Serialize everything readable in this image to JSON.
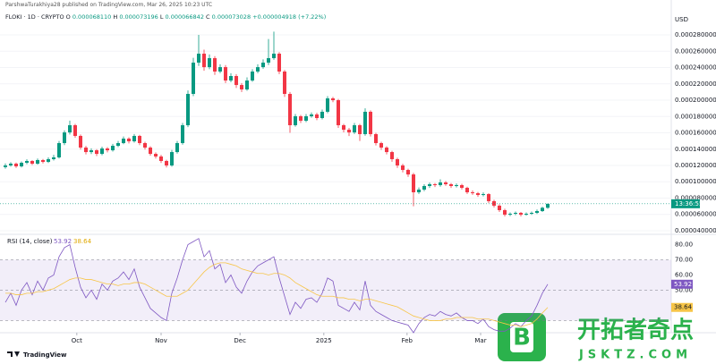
{
  "header": {
    "published": "ParshwaTurakhiya28 published on TradingView.com, Mar 26, 2025 10:23 UTC",
    "symbol": "FLOKI · 1D · CRYPTO",
    "ohlc": [
      {
        "key": "O",
        "value": "0.000068110"
      },
      {
        "key": "H",
        "value": "0.000073196"
      },
      {
        "key": "L",
        "value": "0.000066842"
      },
      {
        "key": "C",
        "value": "0.000073028"
      }
    ],
    "change": "+0.000004918 (+7.22%)"
  },
  "chart_data": [
    {
      "type": "candlestick",
      "currency": "USD",
      "up_color": "#089981",
      "down_color": "#f23645",
      "countdown": "13:36:55",
      "open": [
        0.000118,
        0.00012,
        0.0001222,
        0.0001189,
        0.0001233,
        0.0001255,
        0.0001222,
        0.0001266,
        0.0001244,
        0.0001277,
        0.0001299,
        0.0001474,
        0.0001605,
        0.0001693,
        0.0001562,
        0.0001419,
        0.0001364,
        0.0001386,
        0.0001342,
        0.0001408,
        0.0001386,
        0.0001441,
        0.0001474,
        0.0001529,
        0.0001496,
        0.0001562,
        0.0001474,
        0.0001419,
        0.0001342,
        0.000131,
        0.0001255,
        0.00012,
        0.0001364,
        0.0001474,
        0.0001693,
        0.0002077,
        0.000246,
        0.000257,
        0.0002405,
        0.0002515,
        0.0002351,
        0.0002405,
        0.0002241,
        0.0002296,
        0.0002186,
        0.0002132,
        0.0002241,
        0.0002351,
        0.0002405,
        0.000246,
        0.0002515,
        0.000257,
        0.0002351,
        0.0002077,
        0.0001693,
        0.0001803,
        0.0001748,
        0.0001803,
        0.0001825,
        0.0001781,
        0.0001858,
        0.0002022,
        0.0002,
        0.0001693,
        0.0001638,
        0.0001605,
        0.0001693,
        0.0001584,
        0.0001858,
        0.0001584,
        0.0001474,
        0.0001419,
        0.0001364,
        0.0001277,
        0.00012,
        0.0001145,
        0.000109,
        8.71e-05,
        9.04e-05,
        9.48e-05,
        9.7e-05,
        9.59e-05,
        9.92e-05,
        9.7e-05,
        9.48e-05,
        9.59e-05,
        9.26e-05,
        8.71e-05,
        8.6e-05,
        8.38e-05,
        8.49e-05,
        7.62e-05,
        7.07e-05,
        6.52e-05,
        5.97e-05,
        6.08e-05,
        6.19e-05,
        5.97e-05,
        6.08e-05,
        6.19e-05,
        6.41e-05,
        6.811e-05
      ],
      "high": [
        0.0001225,
        0.000124,
        0.0001235,
        0.000125,
        0.0001275,
        0.0001265,
        0.0001285,
        0.000128,
        0.00013,
        0.000133,
        0.00015,
        0.000163,
        0.000175,
        0.000171,
        0.000158,
        0.000144,
        0.000141,
        0.00014,
        0.000143,
        0.0001425,
        0.0001465,
        0.00015,
        0.0001555,
        0.0001545,
        0.0001585,
        0.0001575,
        0.000149,
        0.0001435,
        0.000136,
        0.000133,
        0.000127,
        0.000139,
        0.00015,
        0.000172,
        0.000212,
        0.000252,
        0.00028,
        0.000262,
        0.000256,
        0.000254,
        0.000244,
        0.000243,
        0.000233,
        0.000232,
        0.000221,
        0.000228,
        0.000238,
        0.000244,
        0.00025,
        0.000275,
        0.000284,
        0.000259,
        0.000237,
        0.00021,
        0.000183,
        0.000182,
        0.000183,
        0.000185,
        0.0001845,
        0.0001885,
        0.000205,
        0.000204,
        0.0002015,
        0.000171,
        0.000166,
        0.000172,
        0.000171,
        0.00019,
        0.0001875,
        0.00016,
        0.000149,
        0.0001435,
        0.000138,
        0.0001295,
        0.000122,
        0.000116,
        0.000111,
        9.3e-05,
        9.7e-05,
        9.9e-05,
        9.85e-05,
        0.000103,
        0.000101,
        9.85e-05,
        9.8e-05,
        9.75e-05,
        9.4e-05,
        8.95e-05,
        8.75e-05,
        8.7e-05,
        8.6e-05,
        7.8e-05,
        7.25e-05,
        6.7e-05,
        6.25e-05,
        6.35e-05,
        6.3e-05,
        6.25e-05,
        6.35e-05,
        6.6e-05,
        6.95e-05,
        7.3196e-05
      ],
      "low": [
        0.000116,
        0.0001185,
        0.000117,
        0.0001175,
        0.0001215,
        0.0001205,
        0.000121,
        0.0001225,
        0.000123,
        0.000126,
        0.0001285,
        0.000145,
        0.000158,
        0.000154,
        0.0001395,
        0.0001335,
        0.000134,
        0.0001315,
        0.0001325,
        0.000136,
        0.000137,
        0.0001425,
        0.000146,
        0.000147,
        0.000148,
        0.000145,
        0.0001395,
        0.000132,
        0.0001285,
        0.000123,
        0.0001175,
        0.0001185,
        0.0001345,
        0.0001455,
        0.000167,
        0.000205,
        0.000242,
        0.000236,
        0.000238,
        0.000231,
        0.000233,
        0.000221,
        0.000222,
        0.000215,
        0.00021,
        0.0002115,
        0.0002225,
        0.000233,
        0.0002385,
        0.000243,
        0.0002495,
        0.000232,
        0.000204,
        0.00016,
        0.0001675,
        0.000172,
        0.000173,
        0.0001785,
        0.0001755,
        0.0001765,
        0.000184,
        0.0001975,
        0.000166,
        0.0001605,
        0.000156,
        0.0001585,
        0.00015,
        0.0001565,
        0.0001555,
        0.0001445,
        0.000139,
        0.0001335,
        0.0001245,
        0.000117,
        0.0001115,
        0.000106,
        7e-05,
        8.5e-05,
        8.85e-05,
        9.25e-05,
        9.35e-05,
        9.4e-05,
        9.5e-05,
        9.25e-05,
        9.3e-05,
        9.05e-05,
        8.5e-05,
        8.4e-05,
        8.15e-05,
        8.2e-05,
        7.4e-05,
        6.85e-05,
        6.3e-05,
        5.75e-05,
        5.8e-05,
        5.9e-05,
        5.75e-05,
        5.85e-05,
        5.95e-05,
        6.05e-05,
        6.3e-05,
        6.6842e-05
      ],
      "close": [
        0.00012,
        0.0001222,
        0.0001189,
        0.0001233,
        0.0001255,
        0.0001222,
        0.0001266,
        0.0001244,
        0.0001277,
        0.0001299,
        0.0001474,
        0.0001605,
        0.0001693,
        0.0001562,
        0.0001419,
        0.0001364,
        0.0001386,
        0.0001342,
        0.0001408,
        0.0001386,
        0.0001441,
        0.0001474,
        0.0001529,
        0.0001496,
        0.0001562,
        0.0001474,
        0.0001419,
        0.0001342,
        0.000131,
        0.0001255,
        0.00012,
        0.0001364,
        0.0001474,
        0.0001693,
        0.0002077,
        0.000246,
        0.000257,
        0.0002405,
        0.0002515,
        0.0002351,
        0.0002405,
        0.0002241,
        0.0002296,
        0.0002186,
        0.0002132,
        0.0002241,
        0.0002351,
        0.0002405,
        0.000246,
        0.0002515,
        0.000257,
        0.0002351,
        0.0002077,
        0.0001693,
        0.0001803,
        0.0001748,
        0.0001803,
        0.0001825,
        0.0001781,
        0.0001858,
        0.0002022,
        0.0002,
        0.0001693,
        0.0001638,
        0.0001605,
        0.0001693,
        0.0001584,
        0.0001858,
        0.0001584,
        0.0001474,
        0.0001419,
        0.0001364,
        0.0001277,
        0.00012,
        0.0001145,
        0.000109,
        8.71e-05,
        9.04e-05,
        9.48e-05,
        9.7e-05,
        9.59e-05,
        9.92e-05,
        9.7e-05,
        9.48e-05,
        9.59e-05,
        9.26e-05,
        8.71e-05,
        8.6e-05,
        8.38e-05,
        8.49e-05,
        7.62e-05,
        7.07e-05,
        6.52e-05,
        5.97e-05,
        6.08e-05,
        6.19e-05,
        5.97e-05,
        6.08e-05,
        6.19e-05,
        6.41e-05,
        6.811e-05,
        7.3028e-05
      ],
      "xlim": [
        -1,
        124
      ],
      "xticks": [
        {
          "value": 13.3,
          "label": "Oct"
        },
        {
          "value": 29,
          "label": "Nov"
        },
        {
          "value": 43.7,
          "label": "Dec"
        },
        {
          "value": 59.3,
          "label": "2025"
        },
        {
          "value": 74.8,
          "label": "Feb"
        },
        {
          "value": 88.5,
          "label": "Mar"
        }
      ],
      "ylim": [
        3.56e-05,
        0.0002899
      ],
      "yticks": [
        {
          "value": 4e-05,
          "label": "0.000040000"
        },
        {
          "value": 6e-05,
          "label": "0.000060000"
        },
        {
          "value": 8e-05,
          "label": "0.000080000"
        },
        {
          "value": 0.0001,
          "label": "0.000100000"
        },
        {
          "value": 0.00012,
          "label": "0.000120000"
        },
        {
          "value": 0.00014,
          "label": "0.000140000"
        },
        {
          "value": 0.00016,
          "label": "0.000160000"
        },
        {
          "value": 0.00018,
          "label": "0.000180000"
        },
        {
          "value": 0.0002,
          "label": "0.000200000"
        },
        {
          "value": 0.00022,
          "label": "0.000220000"
        },
        {
          "value": 0.00024,
          "label": "0.000240000"
        },
        {
          "value": 0.00026,
          "label": "0.000260000"
        },
        {
          "value": 0.00028,
          "label": "0.000280000"
        }
      ]
    },
    {
      "type": "line",
      "title": "RSI (14, close)",
      "xlim": [
        -1,
        124
      ],
      "ylim": [
        22,
        85
      ],
      "band": [
        30,
        70
      ],
      "midline": 50,
      "band_color": "#7e57c2",
      "yticks": [
        {
          "value": 50,
          "label": "50.00"
        },
        {
          "value": 60,
          "label": "60.00"
        },
        {
          "value": 70,
          "label": "70.00"
        },
        {
          "value": 80,
          "label": "80.00"
        }
      ],
      "series": [
        {
          "color": "#7e57c2",
          "values": [
            42,
            48,
            40,
            50,
            55,
            47,
            56,
            50,
            58,
            60,
            72,
            78,
            80,
            65,
            52,
            45,
            50,
            44,
            54,
            50,
            56,
            58,
            62,
            57,
            64,
            52,
            45,
            38,
            35,
            32,
            30,
            48,
            58,
            70,
            80,
            82,
            84,
            72,
            76,
            64,
            67,
            55,
            60,
            52,
            48,
            56,
            62,
            66,
            68,
            70,
            72,
            58,
            46,
            34,
            42,
            38,
            44,
            45,
            42,
            48,
            58,
            56,
            40,
            38,
            36,
            42,
            37,
            56,
            40,
            36,
            34,
            32,
            30,
            29,
            28,
            27,
            22,
            28,
            32,
            34,
            33,
            36,
            34,
            33,
            35,
            32,
            30,
            30,
            28,
            31,
            26,
            24,
            23,
            23,
            25,
            28,
            26,
            30,
            33,
            40,
            48,
            53.92
          ]
        },
        {
          "color": "#f7c548",
          "values": [
            48,
            48,
            47,
            47,
            48,
            48,
            49,
            49,
            50,
            51,
            53,
            55,
            57,
            58,
            58,
            57,
            57,
            56,
            55,
            54,
            54,
            53,
            54,
            54,
            55,
            55,
            54,
            52,
            50,
            48,
            46,
            46,
            46,
            48,
            50,
            54,
            58,
            62,
            65,
            67,
            68,
            68,
            67,
            66,
            64,
            63,
            62,
            61,
            61,
            60,
            61,
            61,
            60,
            58,
            55,
            53,
            51,
            49,
            47,
            46,
            46,
            46,
            45,
            45,
            44,
            44,
            43,
            44,
            44,
            43,
            42,
            41,
            40,
            39,
            37,
            35,
            33,
            32,
            31,
            30,
            30,
            30,
            31,
            31,
            32,
            32,
            32,
            32,
            31,
            31,
            31,
            30,
            29,
            28,
            27,
            27,
            26,
            27,
            28,
            31,
            35,
            38.64
          ]
        }
      ]
    }
  ],
  "footer": {
    "brand": "TradingView"
  },
  "watermark": {
    "logo": "B",
    "name": "开拓者奇点",
    "domain": "JSKTZ.COM"
  }
}
